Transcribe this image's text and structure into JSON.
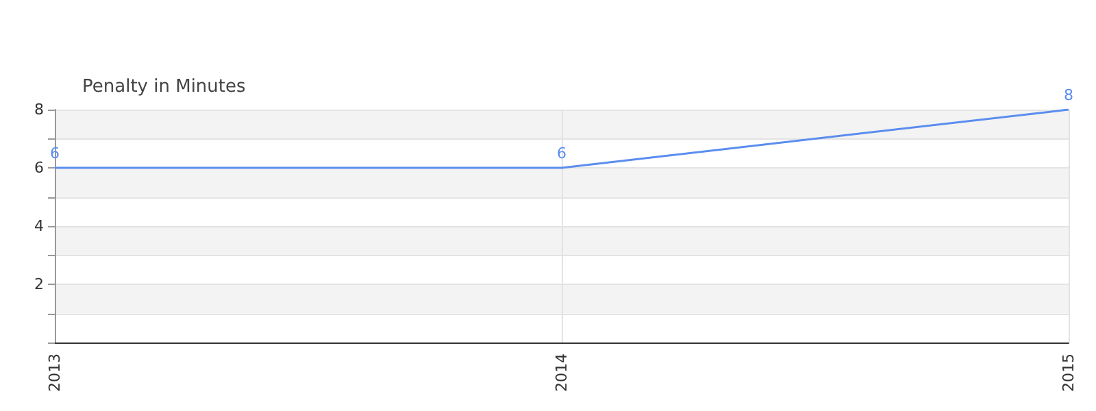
{
  "chart_data": {
    "type": "line",
    "title": "Penalty in Minutes",
    "categories": [
      "2013",
      "2014",
      "2015"
    ],
    "series": [
      {
        "color": "#5b8def",
        "values": [
          6,
          6,
          8
        ]
      }
    ],
    "ylim": [
      0,
      8
    ],
    "yticks": [
      {
        "value": 0,
        "label": null
      },
      {
        "value": 1,
        "label": null
      },
      2,
      {
        "value": 3,
        "label": null
      },
      4,
      {
        "value": 5,
        "label": null
      },
      6,
      {
        "value": 7,
        "label": null
      },
      8
    ],
    "grid": true,
    "data_labels": true,
    "marker": "none",
    "line_style": "solid"
  }
}
